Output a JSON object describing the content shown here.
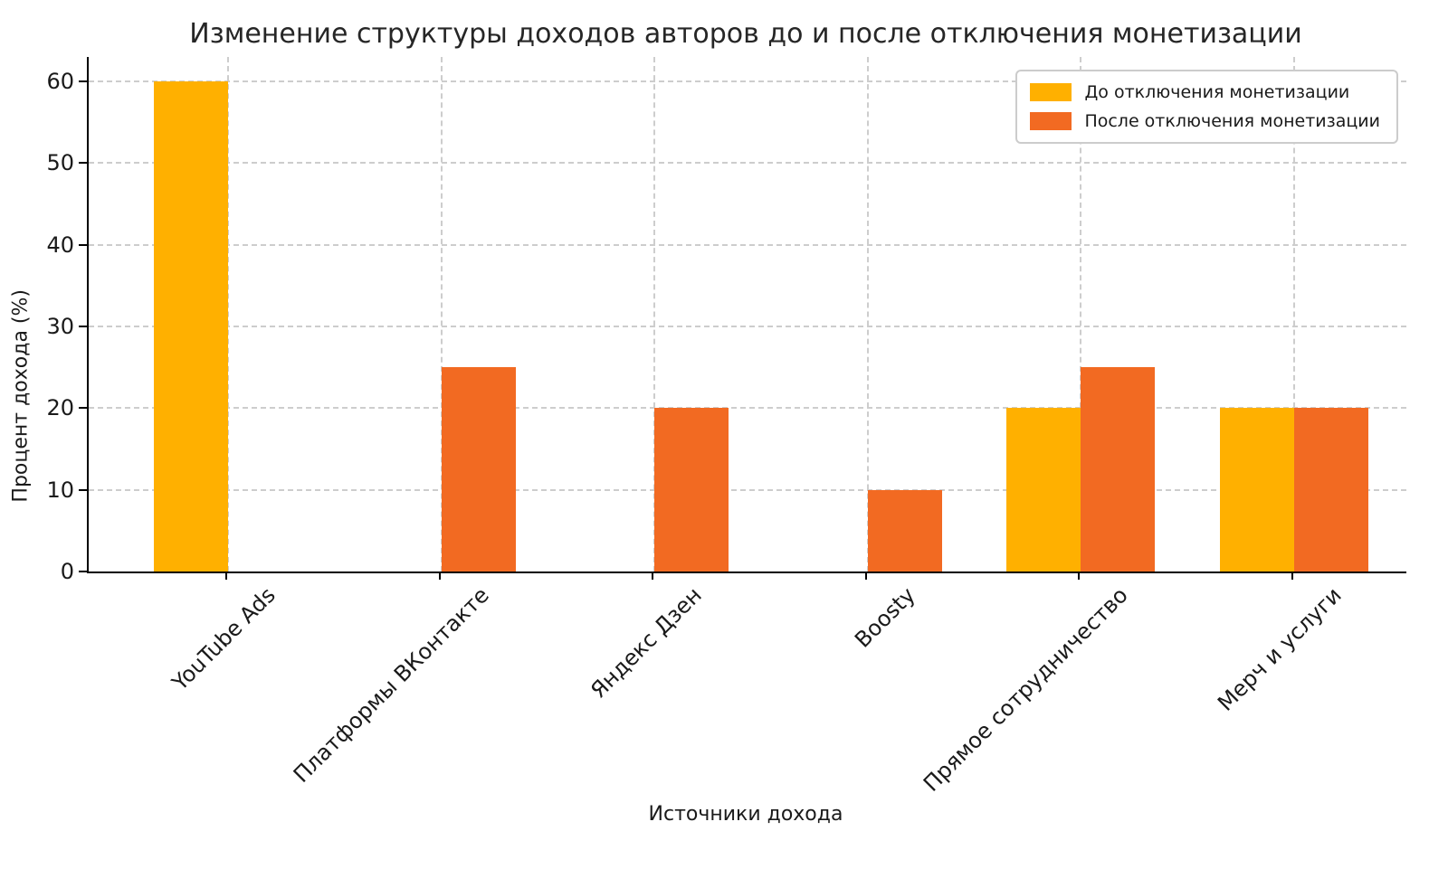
{
  "chart_data": {
    "type": "bar",
    "title": "Изменение структуры доходов авторов до и после отключения монетизации",
    "xlabel": "Источники дохода",
    "ylabel": "Процент дохода (%)",
    "categories": [
      "YouTube Ads",
      "Платформы ВКонтакте",
      "Яндекс Дзен",
      "Boosty",
      "Прямое сотрудничество",
      "Мерч и услуги"
    ],
    "series": [
      {
        "name": "До отключения монетизации",
        "color": "#FFB000",
        "values": [
          60,
          0,
          0,
          0,
          20,
          20
        ]
      },
      {
        "name": "После отключения монетизации",
        "color": "#F26A22",
        "values": [
          0,
          25,
          20,
          10,
          25,
          20
        ]
      }
    ],
    "ylim": [
      0,
      63
    ],
    "yticks": [
      0,
      10,
      20,
      30,
      40,
      50,
      60
    ],
    "grid": true,
    "grid_color": "#cdcdcd",
    "axis_color": "#000000",
    "text_color": "#1a1a1a",
    "legend_position": "upper right",
    "background": "#ffffff"
  }
}
